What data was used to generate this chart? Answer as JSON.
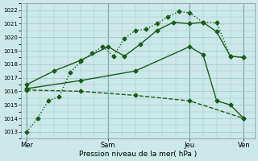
{
  "xlabel": "Pression niveau de la mer( hPa )",
  "bg_color": "#cce8e8",
  "grid_color": "#99cccc",
  "line_color": "#1a5c1a",
  "ylim": [
    1012.5,
    1022.5
  ],
  "yticks": [
    1013,
    1014,
    1015,
    1016,
    1017,
    1018,
    1019,
    1020,
    1021,
    1022
  ],
  "xtick_labels": [
    "Mer",
    "Sam",
    "Jeu",
    "Ven"
  ],
  "xtick_pos": [
    0,
    30,
    60,
    80
  ],
  "xlim": [
    -2,
    84
  ],
  "lines": [
    {
      "x": [
        0,
        4,
        8,
        12,
        16,
        20,
        24,
        28,
        32,
        36,
        40,
        44,
        48,
        52,
        56,
        60,
        65,
        70,
        75,
        80
      ],
      "y": [
        1013.0,
        1014.0,
        1015.3,
        1015.6,
        1017.4,
        1018.2,
        1018.8,
        1019.3,
        1018.6,
        1019.9,
        1020.5,
        1020.6,
        1021.0,
        1021.5,
        1021.9,
        1021.8,
        1021.1,
        1021.1,
        1018.6,
        1018.5
      ],
      "style": ":",
      "marker": "D",
      "markersize": 2.5,
      "lw": 1.0
    },
    {
      "x": [
        0,
        10,
        20,
        30,
        36,
        42,
        48,
        54,
        60,
        65,
        70,
        75,
        80
      ],
      "y": [
        1016.5,
        1017.5,
        1018.3,
        1019.3,
        1018.6,
        1019.5,
        1020.5,
        1021.1,
        1021.0,
        1021.1,
        1020.4,
        1018.6,
        1018.5
      ],
      "style": "-",
      "marker": "D",
      "markersize": 2.5,
      "lw": 1.0
    },
    {
      "x": [
        0,
        20,
        40,
        60,
        65,
        70,
        75,
        80
      ],
      "y": [
        1016.2,
        1016.8,
        1017.5,
        1019.3,
        1018.7,
        1015.3,
        1015.0,
        1014.0
      ],
      "style": "-",
      "marker": "D",
      "markersize": 2.5,
      "lw": 1.0
    },
    {
      "x": [
        0,
        20,
        40,
        60,
        80
      ],
      "y": [
        1016.1,
        1016.0,
        1015.7,
        1015.3,
        1014.0
      ],
      "style": "--",
      "marker": "D",
      "markersize": 2.5,
      "lw": 1.0
    }
  ],
  "vline_positions": [
    0,
    30,
    60,
    80
  ],
  "vline_color": "#447777",
  "ytick_fontsize": 5,
  "xtick_fontsize": 6,
  "xlabel_fontsize": 6.5
}
